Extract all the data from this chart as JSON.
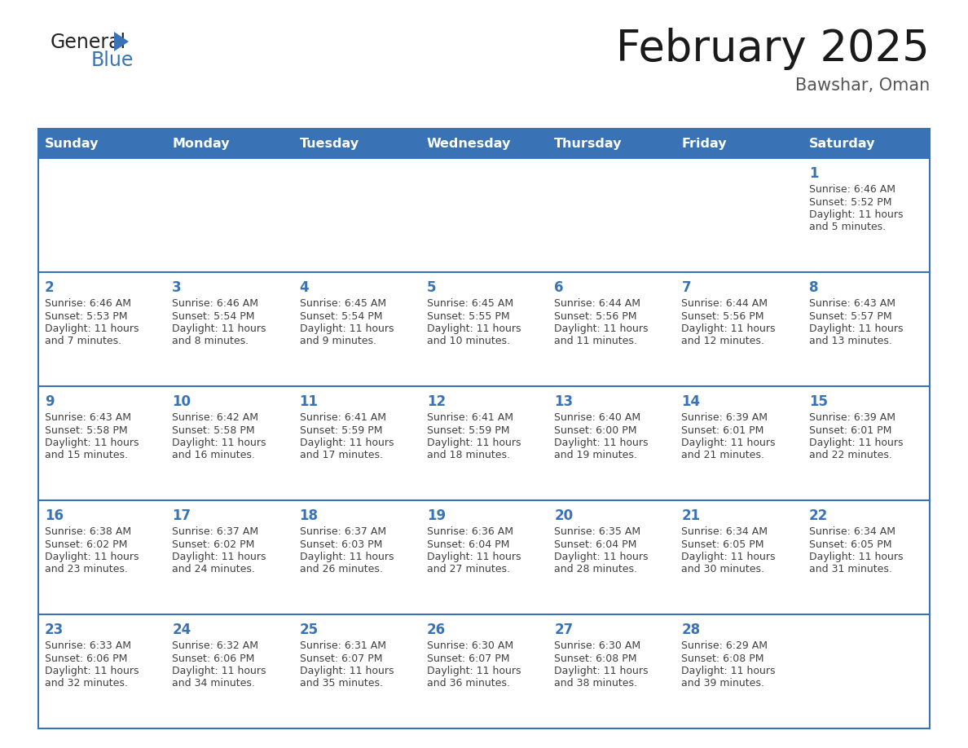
{
  "title": "February 2025",
  "subtitle": "Bawshar, Oman",
  "days_of_week": [
    "Sunday",
    "Monday",
    "Tuesday",
    "Wednesday",
    "Thursday",
    "Friday",
    "Saturday"
  ],
  "header_bg": "#3A73B5",
  "header_text": "#FFFFFF",
  "cell_bg": "#FFFFFF",
  "border_color": "#3A73B5",
  "text_color": "#404040",
  "day_number_color": "#3A73B5",
  "logo_general_color": "#222222",
  "logo_blue_color": "#3A73B5",
  "title_color": "#1a1a1a",
  "subtitle_color": "#555555",
  "calendar": [
    [
      null,
      null,
      null,
      null,
      null,
      null,
      1
    ],
    [
      2,
      3,
      4,
      5,
      6,
      7,
      8
    ],
    [
      9,
      10,
      11,
      12,
      13,
      14,
      15
    ],
    [
      16,
      17,
      18,
      19,
      20,
      21,
      22
    ],
    [
      23,
      24,
      25,
      26,
      27,
      28,
      null
    ]
  ],
  "sunrise": {
    "1": "6:46 AM",
    "2": "6:46 AM",
    "3": "6:46 AM",
    "4": "6:45 AM",
    "5": "6:45 AM",
    "6": "6:44 AM",
    "7": "6:44 AM",
    "8": "6:43 AM",
    "9": "6:43 AM",
    "10": "6:42 AM",
    "11": "6:41 AM",
    "12": "6:41 AM",
    "13": "6:40 AM",
    "14": "6:39 AM",
    "15": "6:39 AM",
    "16": "6:38 AM",
    "17": "6:37 AM",
    "18": "6:37 AM",
    "19": "6:36 AM",
    "20": "6:35 AM",
    "21": "6:34 AM",
    "22": "6:34 AM",
    "23": "6:33 AM",
    "24": "6:32 AM",
    "25": "6:31 AM",
    "26": "6:30 AM",
    "27": "6:30 AM",
    "28": "6:29 AM"
  },
  "sunset": {
    "1": "5:52 PM",
    "2": "5:53 PM",
    "3": "5:54 PM",
    "4": "5:54 PM",
    "5": "5:55 PM",
    "6": "5:56 PM",
    "7": "5:56 PM",
    "8": "5:57 PM",
    "9": "5:58 PM",
    "10": "5:58 PM",
    "11": "5:59 PM",
    "12": "5:59 PM",
    "13": "6:00 PM",
    "14": "6:01 PM",
    "15": "6:01 PM",
    "16": "6:02 PM",
    "17": "6:02 PM",
    "18": "6:03 PM",
    "19": "6:04 PM",
    "20": "6:04 PM",
    "21": "6:05 PM",
    "22": "6:05 PM",
    "23": "6:06 PM",
    "24": "6:06 PM",
    "25": "6:07 PM",
    "26": "6:07 PM",
    "27": "6:08 PM",
    "28": "6:08 PM"
  },
  "daylight": {
    "1": "11 hours and 5 minutes.",
    "2": "11 hours and 7 minutes.",
    "3": "11 hours and 8 minutes.",
    "4": "11 hours and 9 minutes.",
    "5": "11 hours and 10 minutes.",
    "6": "11 hours and 11 minutes.",
    "7": "11 hours and 12 minutes.",
    "8": "11 hours and 13 minutes.",
    "9": "11 hours and 15 minutes.",
    "10": "11 hours and 16 minutes.",
    "11": "11 hours and 17 minutes.",
    "12": "11 hours and 18 minutes.",
    "13": "11 hours and 19 minutes.",
    "14": "11 hours and 21 minutes.",
    "15": "11 hours and 22 minutes.",
    "16": "11 hours and 23 minutes.",
    "17": "11 hours and 24 minutes.",
    "18": "11 hours and 26 minutes.",
    "19": "11 hours and 27 minutes.",
    "20": "11 hours and 28 minutes.",
    "21": "11 hours and 30 minutes.",
    "22": "11 hours and 31 minutes.",
    "23": "11 hours and 32 minutes.",
    "24": "11 hours and 34 minutes.",
    "25": "11 hours and 35 minutes.",
    "26": "11 hours and 36 minutes.",
    "27": "11 hours and 38 minutes.",
    "28": "11 hours and 39 minutes."
  }
}
